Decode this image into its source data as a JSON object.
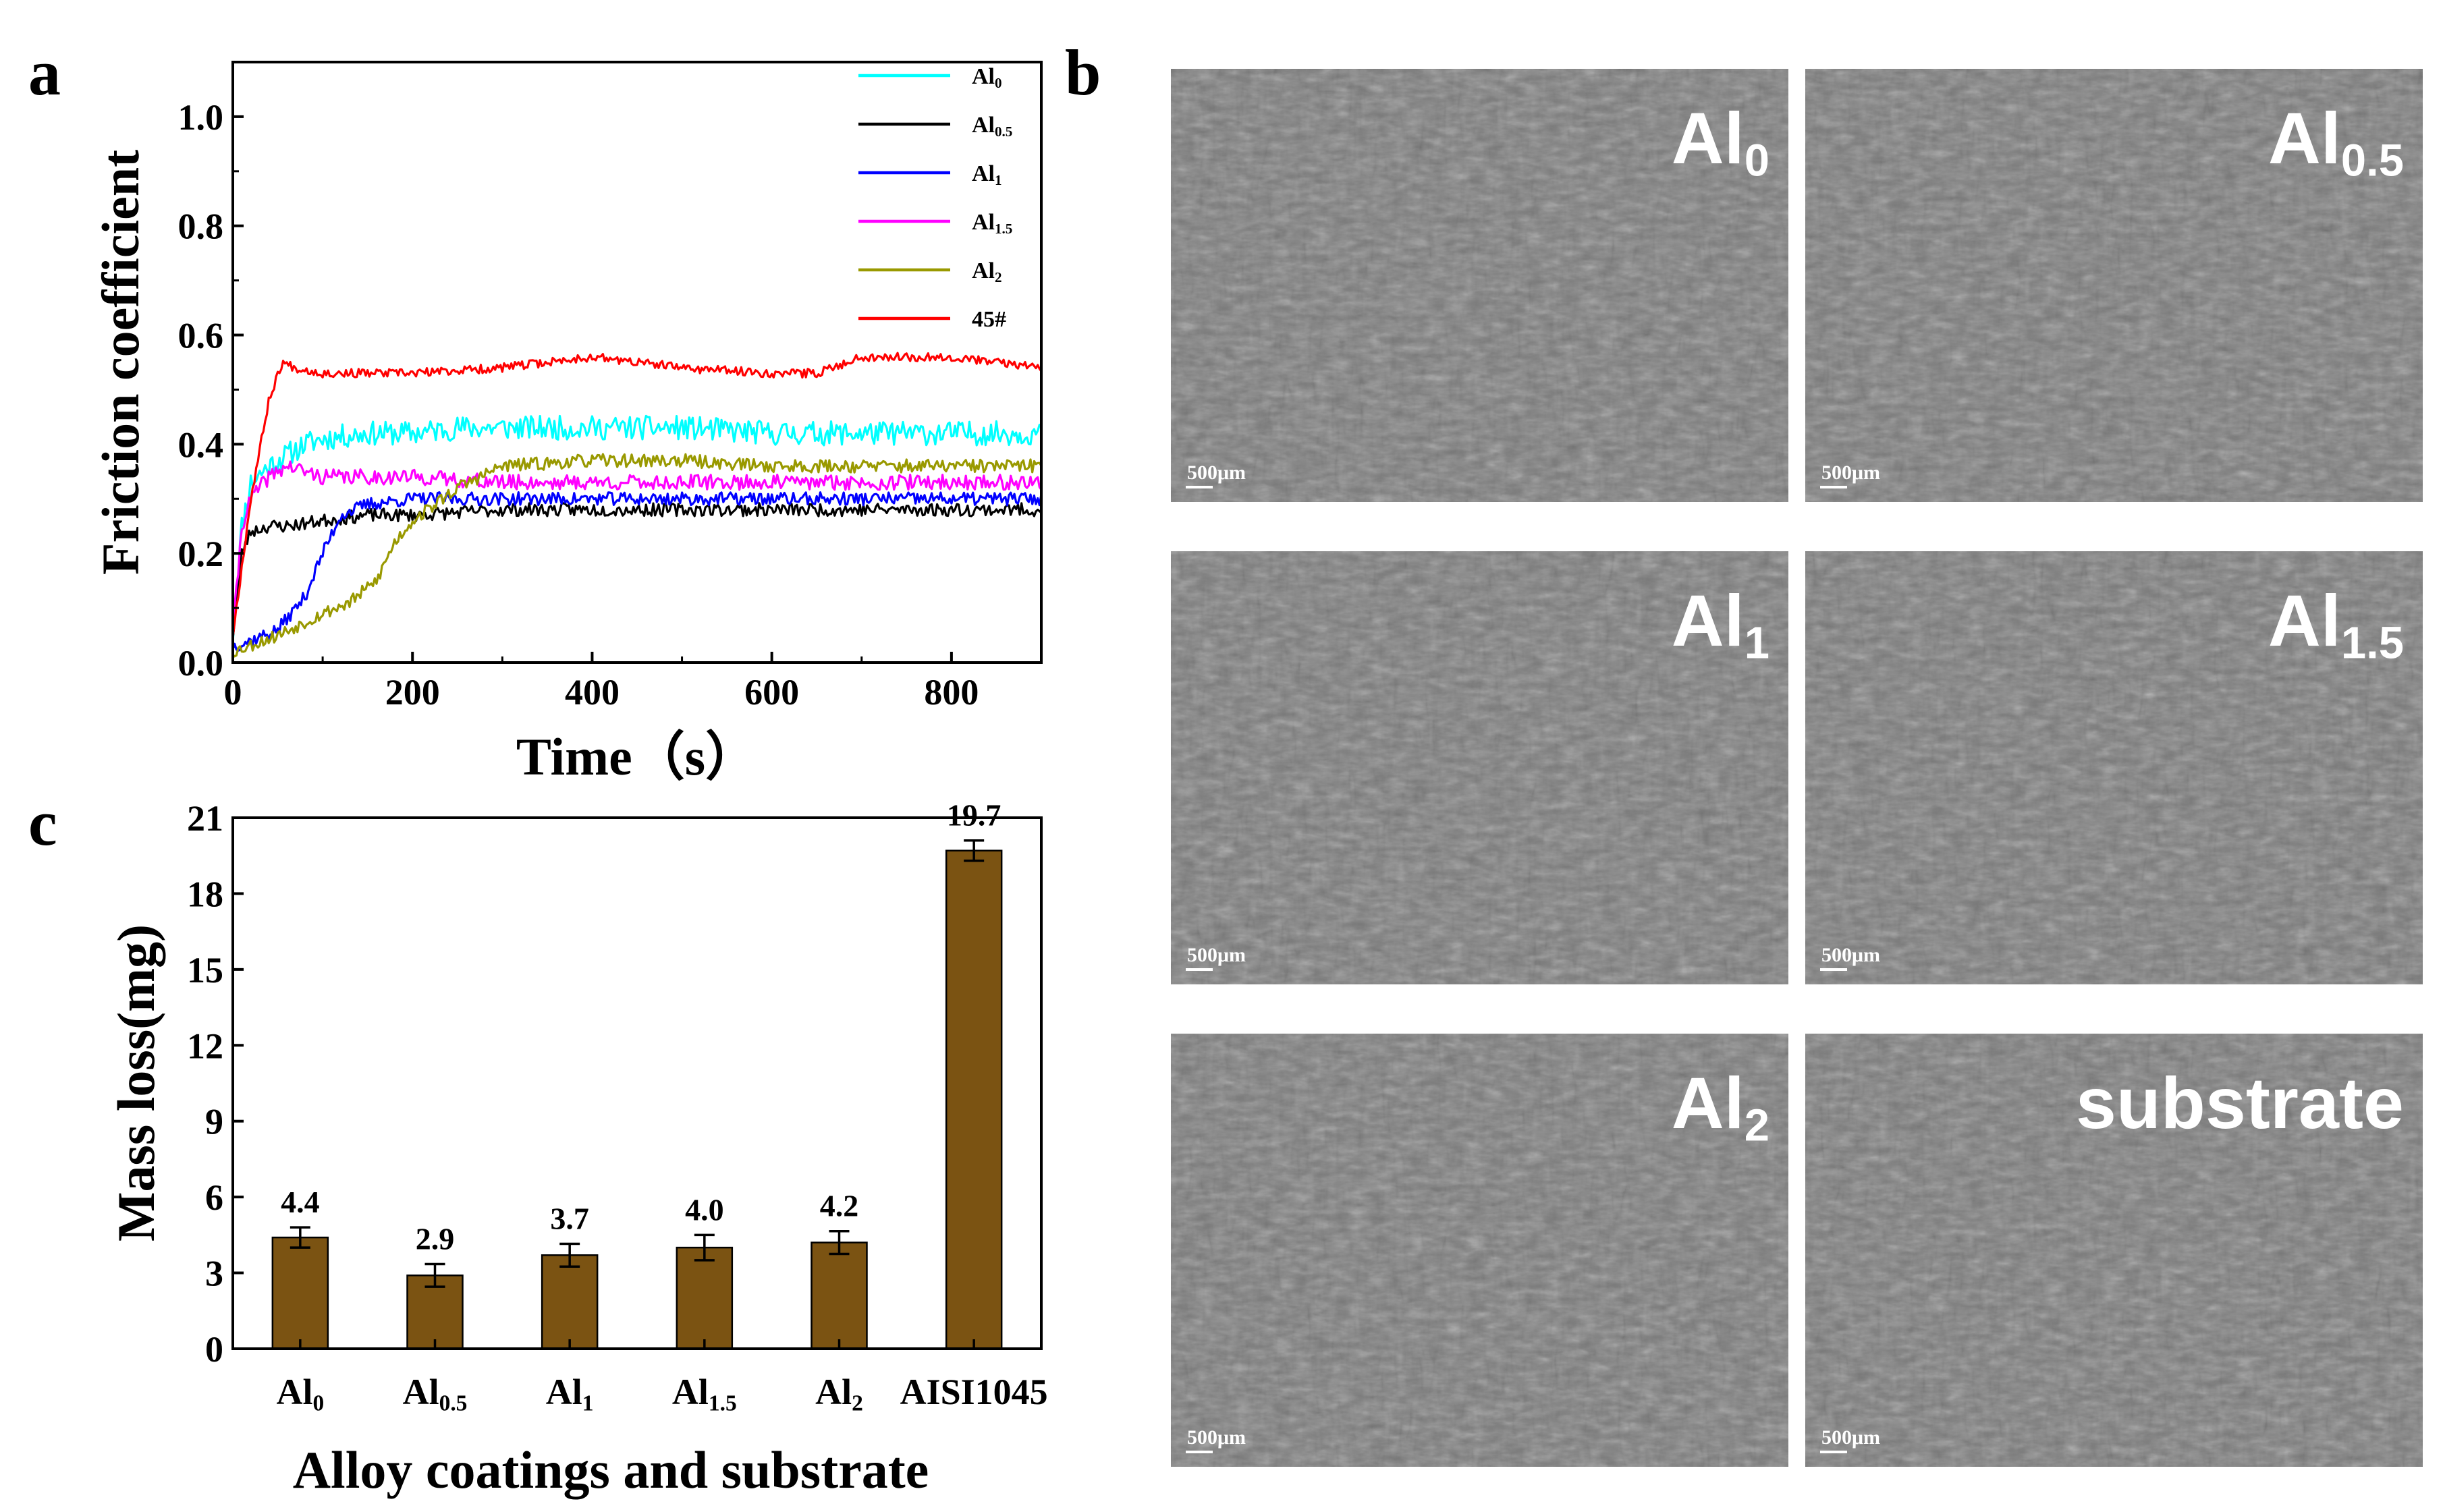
{
  "panels": {
    "a": "a",
    "b": "b",
    "c": "c"
  },
  "chart_data": [
    {
      "type": "line",
      "panel": "a",
      "title": "",
      "xlabel": "Time（s）",
      "ylabel": "Friction coefficient",
      "xlim": [
        0,
        900
      ],
      "ylim": [
        0,
        1.1
      ],
      "xticks": [
        0,
        200,
        400,
        600,
        800
      ],
      "yticks": [
        0.0,
        0.2,
        0.4,
        0.6,
        0.8,
        1.0
      ],
      "ytick_labels": [
        "0.0",
        "0.2",
        "0.4",
        "0.6",
        "0.8",
        "1.0"
      ],
      "legend_position": "top-right",
      "series": [
        {
          "name": "Al0",
          "label_main": "Al",
          "label_sub": "0",
          "color": "#00ffff",
          "noise": 0.022,
          "seed": 11,
          "x": [
            0,
            10,
            20,
            40,
            60,
            80,
            100,
            150,
            200,
            250,
            300,
            400,
            500,
            600,
            700,
            800,
            900
          ],
          "y": [
            0.05,
            0.25,
            0.33,
            0.36,
            0.38,
            0.4,
            0.41,
            0.42,
            0.42,
            0.43,
            0.43,
            0.43,
            0.43,
            0.42,
            0.42,
            0.42,
            0.42
          ]
        },
        {
          "name": "Al0.5",
          "label_main": "Al",
          "label_sub": "0.5",
          "color": "#000000",
          "noise": 0.012,
          "seed": 23,
          "x": [
            0,
            10,
            20,
            40,
            60,
            100,
            150,
            200,
            300,
            400,
            500,
            600,
            700,
            800,
            900
          ],
          "y": [
            0.05,
            0.2,
            0.24,
            0.25,
            0.25,
            0.26,
            0.27,
            0.27,
            0.28,
            0.28,
            0.28,
            0.28,
            0.28,
            0.28,
            0.28
          ]
        },
        {
          "name": "Al1",
          "label_main": "Al",
          "label_sub": "1",
          "color": "#0000ff",
          "noise": 0.012,
          "seed": 37,
          "x": [
            0,
            20,
            50,
            80,
            100,
            120,
            150,
            200,
            300,
            400,
            500,
            600,
            700,
            800,
            900
          ],
          "y": [
            0.03,
            0.04,
            0.06,
            0.12,
            0.2,
            0.27,
            0.29,
            0.3,
            0.3,
            0.3,
            0.3,
            0.3,
            0.3,
            0.3,
            0.3
          ]
        },
        {
          "name": "Al1.5",
          "label_main": "Al",
          "label_sub": "1.5",
          "color": "#ff00ff",
          "noise": 0.014,
          "seed": 41,
          "x": [
            0,
            10,
            20,
            40,
            60,
            100,
            200,
            300,
            400,
            500,
            600,
            700,
            800,
            900
          ],
          "y": [
            0.05,
            0.25,
            0.3,
            0.34,
            0.36,
            0.34,
            0.34,
            0.33,
            0.33,
            0.33,
            0.33,
            0.33,
            0.33,
            0.33
          ]
        },
        {
          "name": "Al2",
          "label_main": "Al",
          "label_sub": "2",
          "color": "#999900",
          "noise": 0.012,
          "seed": 53,
          "x": [
            0,
            50,
            100,
            130,
            160,
            180,
            200,
            250,
            300,
            400,
            500,
            600,
            700,
            800,
            900
          ],
          "y": [
            0.02,
            0.05,
            0.09,
            0.11,
            0.15,
            0.22,
            0.26,
            0.32,
            0.36,
            0.37,
            0.37,
            0.36,
            0.36,
            0.36,
            0.36
          ]
        },
        {
          "name": "45#",
          "label_main": "45#",
          "label_sub": "",
          "color": "#ff0000",
          "noise": 0.008,
          "seed": 67,
          "x": [
            0,
            20,
            40,
            55,
            70,
            100,
            200,
            300,
            400,
            500,
            600,
            650,
            700,
            800,
            850,
            900
          ],
          "y": [
            0.05,
            0.3,
            0.48,
            0.55,
            0.54,
            0.53,
            0.53,
            0.54,
            0.56,
            0.54,
            0.53,
            0.53,
            0.56,
            0.56,
            0.55,
            0.54
          ]
        }
      ]
    },
    {
      "type": "bar",
      "panel": "c",
      "title": "",
      "xlabel": "Alloy coatings and substrate",
      "ylabel": "Mass loss(mg)",
      "ylim": [
        0,
        21
      ],
      "yticks": [
        0,
        3,
        6,
        9,
        12,
        15,
        18,
        21
      ],
      "bar_color": "#7b5312",
      "categories": [
        {
          "main": "Al",
          "sub": "0"
        },
        {
          "main": "Al",
          "sub": "0.5"
        },
        {
          "main": "Al",
          "sub": "1"
        },
        {
          "main": "Al",
          "sub": "1.5"
        },
        {
          "main": "Al",
          "sub": "2"
        },
        {
          "main": "AISI1045",
          "sub": ""
        }
      ],
      "values": [
        4.4,
        2.9,
        3.7,
        4.0,
        4.2,
        19.7
      ],
      "value_labels": [
        "4.4",
        "2.9",
        "3.7",
        "4.0",
        "4.2",
        "19.7"
      ],
      "errors": [
        0.4,
        0.45,
        0.45,
        0.5,
        0.45,
        0.4
      ]
    }
  ],
  "sem_images": [
    {
      "main": "Al",
      "sub": "0",
      "scale": "500μm"
    },
    {
      "main": "Al",
      "sub": "0.5",
      "scale": "500μm"
    },
    {
      "main": "Al",
      "sub": "1",
      "scale": "500μm"
    },
    {
      "main": "Al",
      "sub": "1.5",
      "scale": "500μm"
    },
    {
      "main": "Al",
      "sub": "2",
      "scale": "500μm"
    },
    {
      "main": "substrate",
      "sub": "",
      "scale": "500μm"
    }
  ]
}
